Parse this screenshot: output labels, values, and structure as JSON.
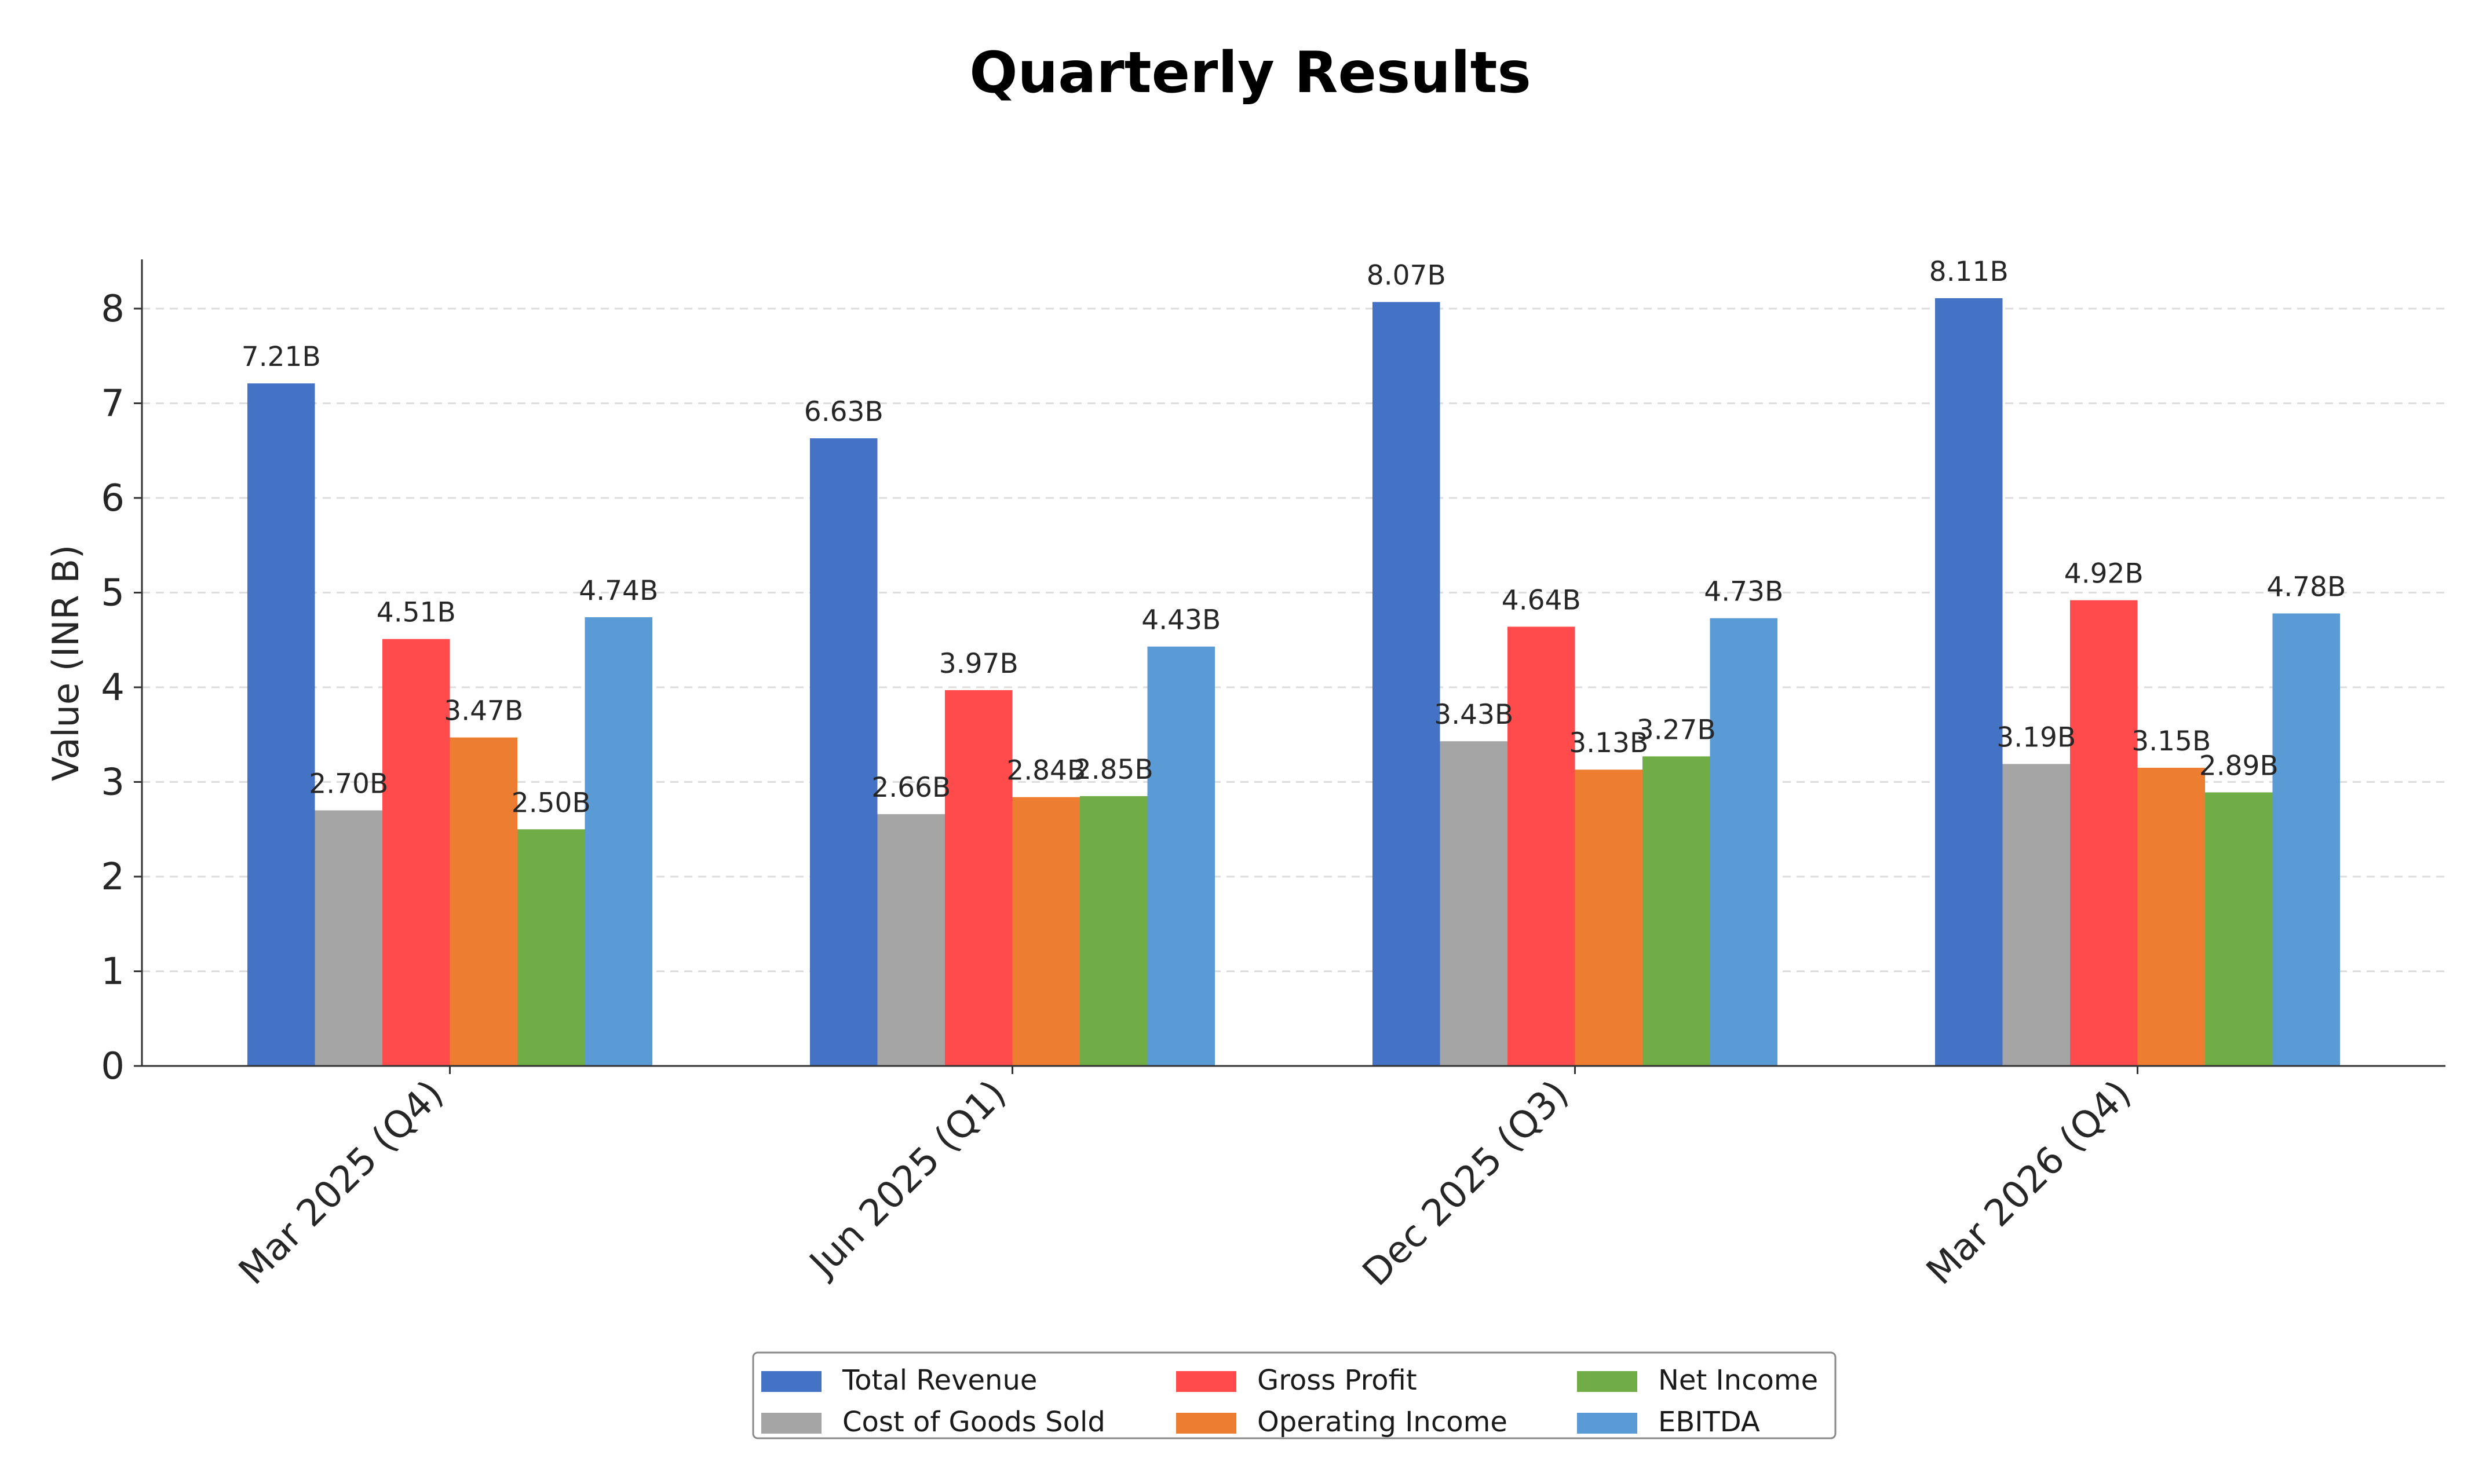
{
  "chart_data": {
    "type": "bar",
    "title": "Quarterly Results",
    "xlabel": "",
    "ylabel": "Value (INR B)",
    "ylim": [
      0,
      8.5
    ],
    "yticks": [
      0,
      1,
      2,
      3,
      4,
      5,
      6,
      7,
      8
    ],
    "grid": "horizontal dashed",
    "legend_position": "bottom-center",
    "categories": [
      "Mar 2025 (Q4)",
      "Jun 2025 (Q1)",
      "Dec 2025 (Q3)",
      "Mar 2026 (Q4)"
    ],
    "series": [
      {
        "name": "Total Revenue",
        "color": "#4472C4",
        "values": [
          7.21,
          6.63,
          8.07,
          8.11
        ],
        "labels": [
          "7.21B",
          "6.63B",
          "8.07B",
          "8.11B"
        ]
      },
      {
        "name": "Cost of Goods Sold",
        "color": "#A5A5A5",
        "values": [
          2.7,
          2.66,
          3.43,
          3.19
        ],
        "labels": [
          "2.70B",
          "2.66B",
          "3.43B",
          "3.19B"
        ]
      },
      {
        "name": "Gross Profit",
        "color": "#FF4B4B",
        "values": [
          4.51,
          3.97,
          4.64,
          4.92
        ],
        "labels": [
          "4.51B",
          "3.97B",
          "4.64B",
          "4.92B"
        ]
      },
      {
        "name": "Operating Income",
        "color": "#ED7D31",
        "values": [
          3.47,
          2.84,
          3.13,
          3.15
        ],
        "labels": [
          "3.47B",
          "2.84B",
          "3.13B",
          "3.15B"
        ]
      },
      {
        "name": "Net Income",
        "color": "#70AD47",
        "values": [
          2.5,
          2.85,
          3.27,
          2.89
        ],
        "labels": [
          "2.50B",
          "2.85B",
          "3.27B",
          "2.89B"
        ]
      },
      {
        "name": "EBITDA",
        "color": "#5B9BD5",
        "values": [
          4.74,
          4.43,
          4.73,
          4.78
        ],
        "labels": [
          "4.74B",
          "4.43B",
          "4.73B",
          "4.78B"
        ]
      }
    ]
  }
}
